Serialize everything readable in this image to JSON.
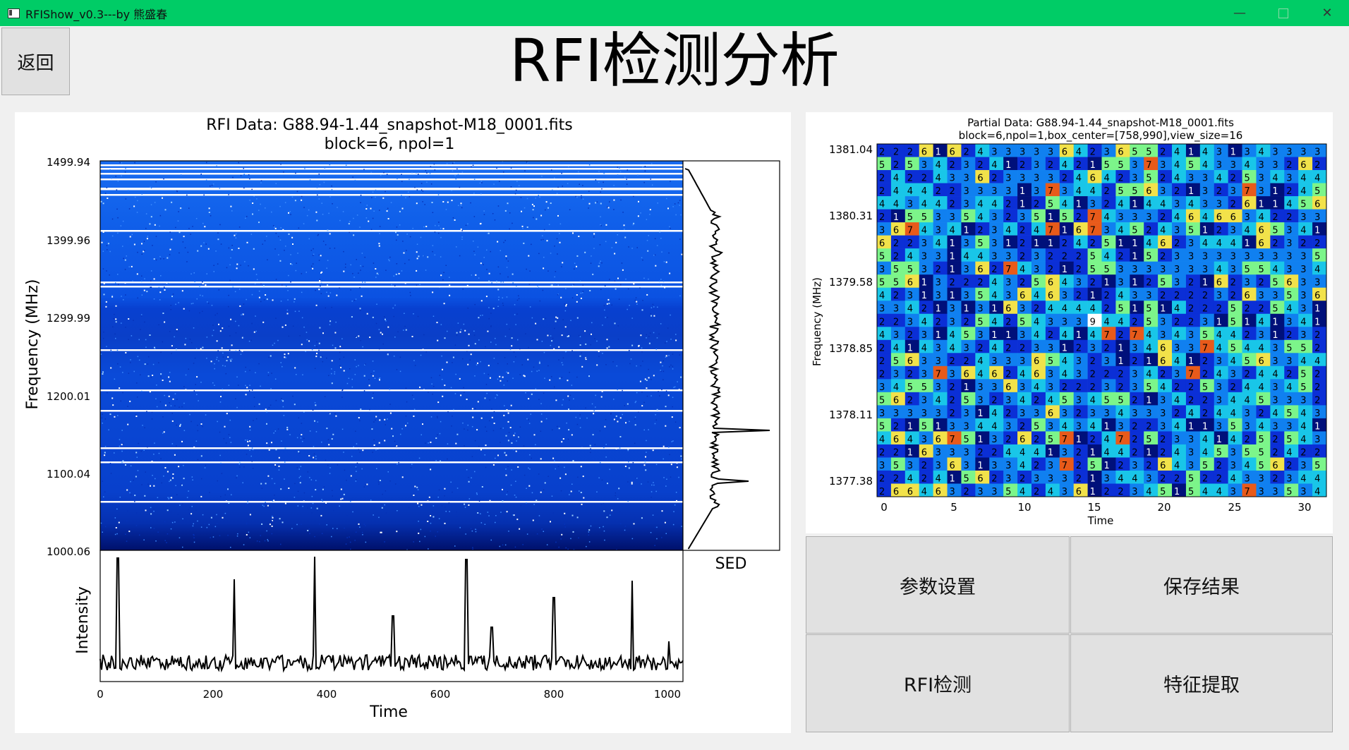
{
  "window": {
    "title": "RFIShow_v0.3---by 熊盛春"
  },
  "back_label": "返回",
  "page_title": "RFI检测分析",
  "left_plot": {
    "title_line1": "RFI Data: G88.94-1.44_snapshot-M18_0001.fits",
    "title_line2": "block=6, npol=1",
    "ylabel": "Frequency (MHz)",
    "xlabel": "Time",
    "intensity_label": "Intensity",
    "sed_label": "SED",
    "freq_ticks": [
      "1499.94",
      "1399.96",
      "1299.99",
      "1200.01",
      "1100.04",
      "1000.06"
    ],
    "time_ticks": [
      "0",
      "200",
      "400",
      "600",
      "800",
      "1000"
    ],
    "colors": {
      "bg": "#0a48e0",
      "dark": "#001070"
    }
  },
  "right_plot": {
    "title_line1": "Partial Data: G88.94-1.44_snapshot-M18_0001.fits",
    "title_line2": "block=6,npol=1,box_center=[758,990],view_size=16",
    "ylabel": "Frequency (MHz)",
    "xlabel": "Time",
    "freq_ticks": [
      "1381.04",
      "1380.31",
      "1379.58",
      "1378.85",
      "1378.11",
      "1377.38"
    ],
    "time_ticks": [
      "0",
      "5",
      "10",
      "15",
      "20",
      "25",
      "30"
    ]
  },
  "buttons": {
    "params": "参数设置",
    "save": "保存结果",
    "rfi_detect": "RFI检测",
    "feature": "特征提取"
  }
}
